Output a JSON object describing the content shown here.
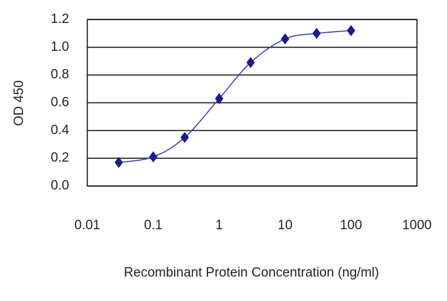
{
  "chart_data": {
    "type": "scatter",
    "x_label": "Recombinant Protein Concentration (ng/ml)",
    "y_label": "OD 450",
    "xscale": "log",
    "xlim": [
      0.01,
      1000
    ],
    "xticks": [
      0.01,
      0.1,
      1,
      10,
      100,
      1000
    ],
    "ylim": [
      0,
      1.2
    ],
    "yticks": [
      {
        "value": 0,
        "label": "0.0"
      },
      0.2,
      0.4,
      0.6,
      0.8,
      {
        "value": 1,
        "label": "1.0"
      },
      1.2
    ],
    "grid": true,
    "series": [
      {
        "color": "#1c1c88",
        "x": [
          0.03,
          0.1,
          0.3,
          1,
          3,
          10,
          30,
          100
        ],
        "values": [
          0.17,
          0.21,
          0.35,
          0.63,
          0.89,
          1.06,
          1.1,
          1.12
        ]
      }
    ]
  }
}
